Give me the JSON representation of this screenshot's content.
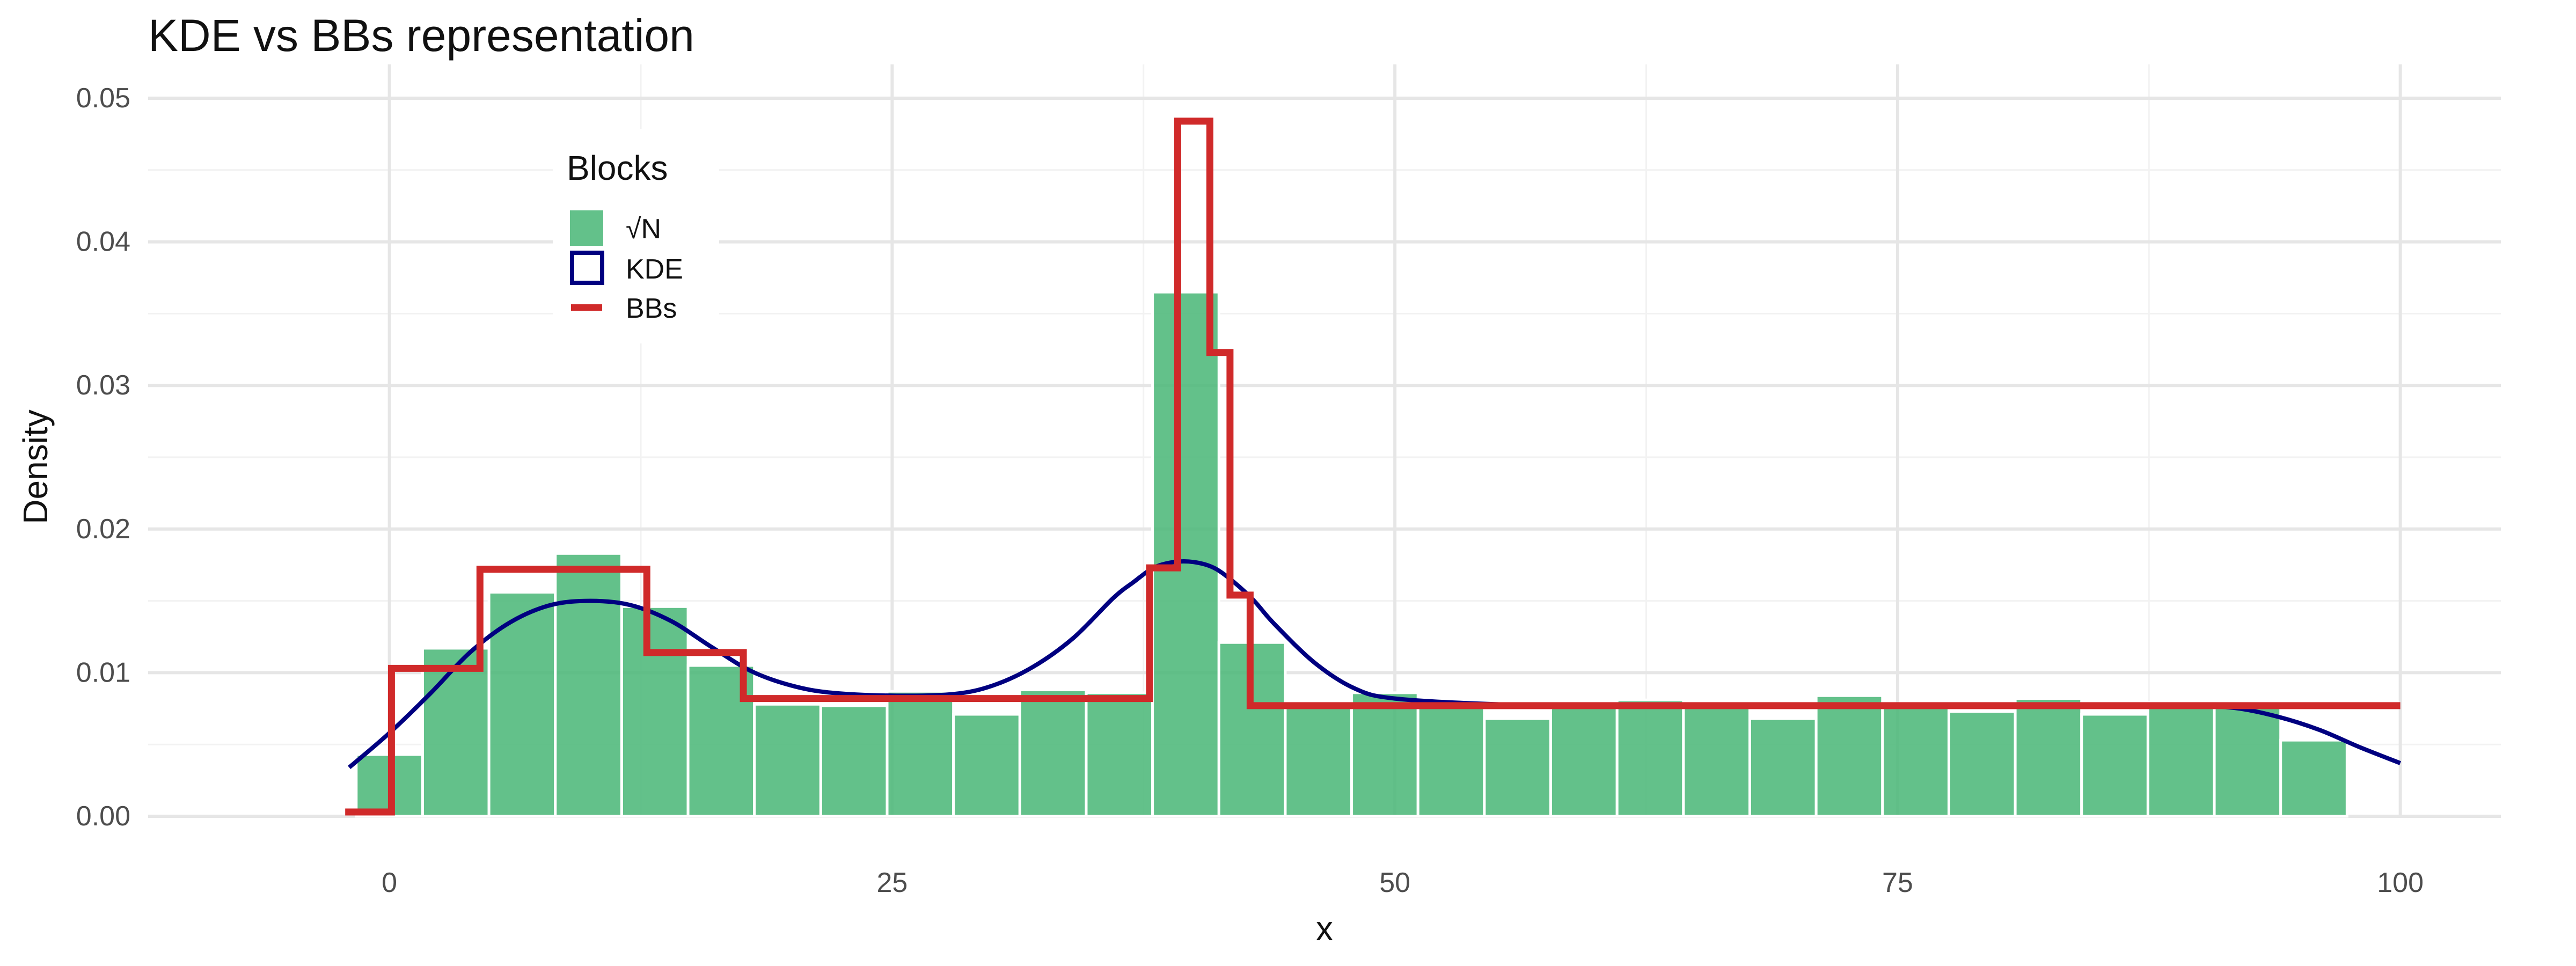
{
  "chart_data": {
    "type": "bar",
    "title": "KDE vs BBs representation",
    "xlabel": "x",
    "ylabel": "Density",
    "xlim": [
      -12,
      105
    ],
    "ylim": [
      0,
      0.05
    ],
    "x_ticks": [
      "0",
      "25",
      "50",
      "75",
      "100"
    ],
    "x_tick_values": [
      0,
      25,
      50,
      75,
      100
    ],
    "y_ticks": [
      "0.00",
      "0.01",
      "0.02",
      "0.03",
      "0.04",
      "0.05"
    ],
    "y_tick_values": [
      0,
      0.01,
      0.02,
      0.03,
      0.04,
      0.05
    ],
    "grid": true,
    "legend": {
      "title": "Blocks",
      "position": "top-left",
      "entries": [
        {
          "label": "√N",
          "kind": "histogram"
        },
        {
          "label": "KDE",
          "kind": "kde"
        },
        {
          "label": "BBs",
          "kind": "bbs"
        }
      ]
    },
    "colors": {
      "histogram_fill": "#4db87a",
      "kde": "#000080",
      "bbs": "#d02a2a",
      "grid_major": "#e6e6e6",
      "grid_minor": "#f2f2f2"
    },
    "series": [
      {
        "name": "√N",
        "type": "histogram",
        "bin_start": -1.65,
        "bin_width": 3.3,
        "values": [
          0.0043,
          0.0117,
          0.0156,
          0.0183,
          0.0146,
          0.0105,
          0.0078,
          0.0077,
          0.0087,
          0.0071,
          0.0088,
          0.0086,
          0.0365,
          0.0121,
          0.0078,
          0.0086,
          0.0078,
          0.0068,
          0.0078,
          0.0081,
          0.0077,
          0.0068,
          0.0084,
          0.0077,
          0.0073,
          0.0082,
          0.0071,
          0.0079,
          0.0076,
          0.0053
        ]
      },
      {
        "name": "KDE",
        "type": "line",
        "x": [
          -2,
          0,
          2,
          4,
          6,
          8,
          10,
          12,
          14,
          16,
          18,
          20,
          22,
          25,
          28,
          30,
          32,
          34,
          36,
          37,
          38,
          39,
          40,
          41,
          42,
          43,
          44,
          46,
          48,
          50,
          55,
          60,
          65,
          70,
          75,
          80,
          85,
          88,
          90,
          92,
          94,
          96,
          98,
          100
        ],
        "y": [
          0.0034,
          0.0058,
          0.0085,
          0.0114,
          0.0135,
          0.0147,
          0.015,
          0.0147,
          0.0136,
          0.0118,
          0.0101,
          0.0091,
          0.0086,
          0.0084,
          0.0085,
          0.0091,
          0.0104,
          0.0124,
          0.0152,
          0.0163,
          0.0173,
          0.0177,
          0.0177,
          0.0173,
          0.0163,
          0.015,
          0.0134,
          0.0107,
          0.0089,
          0.0082,
          0.0078,
          0.0077,
          0.0077,
          0.0077,
          0.0077,
          0.0077,
          0.0077,
          0.0077,
          0.0077,
          0.0075,
          0.0069,
          0.006,
          0.0048,
          0.0037
        ]
      },
      {
        "name": "BBs",
        "type": "step",
        "edges": [
          -2.2,
          0.1,
          4.5,
          12.8,
          17.6,
          37.8,
          39.2,
          40.8,
          41.8,
          42.8,
          100
        ],
        "values": [
          0.0003,
          0.0103,
          0.0172,
          0.0114,
          0.0082,
          0.0173,
          0.0484,
          0.0323,
          0.0154,
          0.0077
        ]
      }
    ]
  }
}
